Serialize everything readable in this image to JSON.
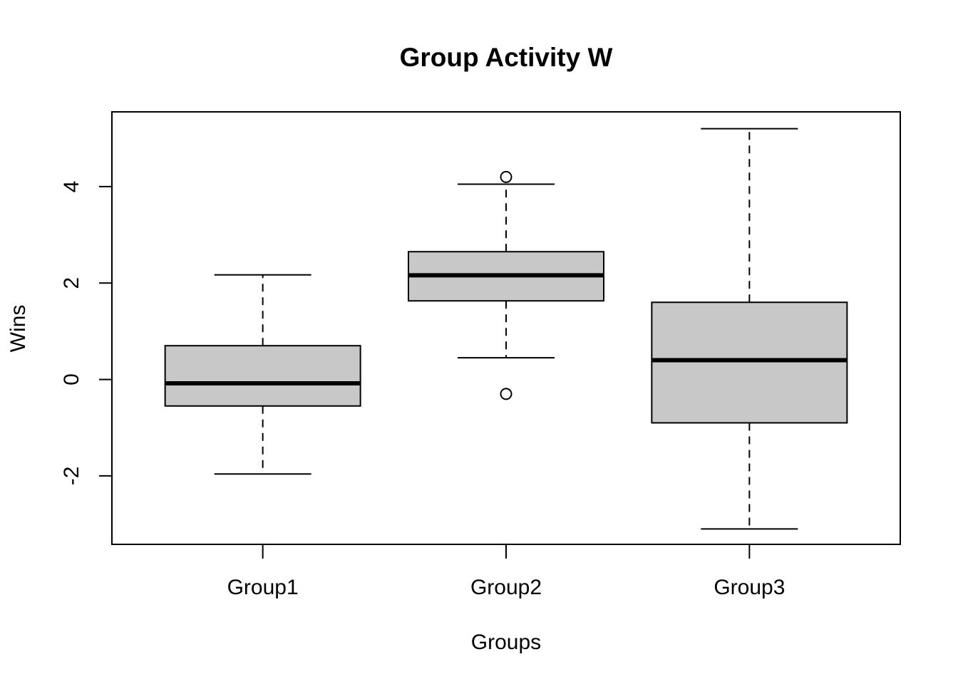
{
  "chart_data": {
    "type": "boxplot",
    "title": "Group Activity W",
    "xlabel": "Groups",
    "ylabel": "Wins",
    "ylim": [
      -3.42,
      5.55
    ],
    "y_ticks": [
      -2,
      0,
      2,
      4
    ],
    "categories": [
      "Group1",
      "Group2",
      "Group3"
    ],
    "box_fill": "#c8c8c8",
    "boxes": [
      {
        "category": "Group1",
        "whisker_low": -1.96,
        "q1": -0.55,
        "median": -0.08,
        "q3": 0.7,
        "whisker_high": 2.17,
        "outliers": []
      },
      {
        "category": "Group2",
        "whisker_low": 0.45,
        "q1": 1.63,
        "median": 2.16,
        "q3": 2.65,
        "whisker_high": 4.05,
        "outliers": [
          4.2,
          -0.3
        ]
      },
      {
        "category": "Group3",
        "whisker_low": -3.1,
        "q1": -0.9,
        "median": 0.4,
        "q3": 1.6,
        "whisker_high": 5.2,
        "outliers": []
      }
    ]
  }
}
